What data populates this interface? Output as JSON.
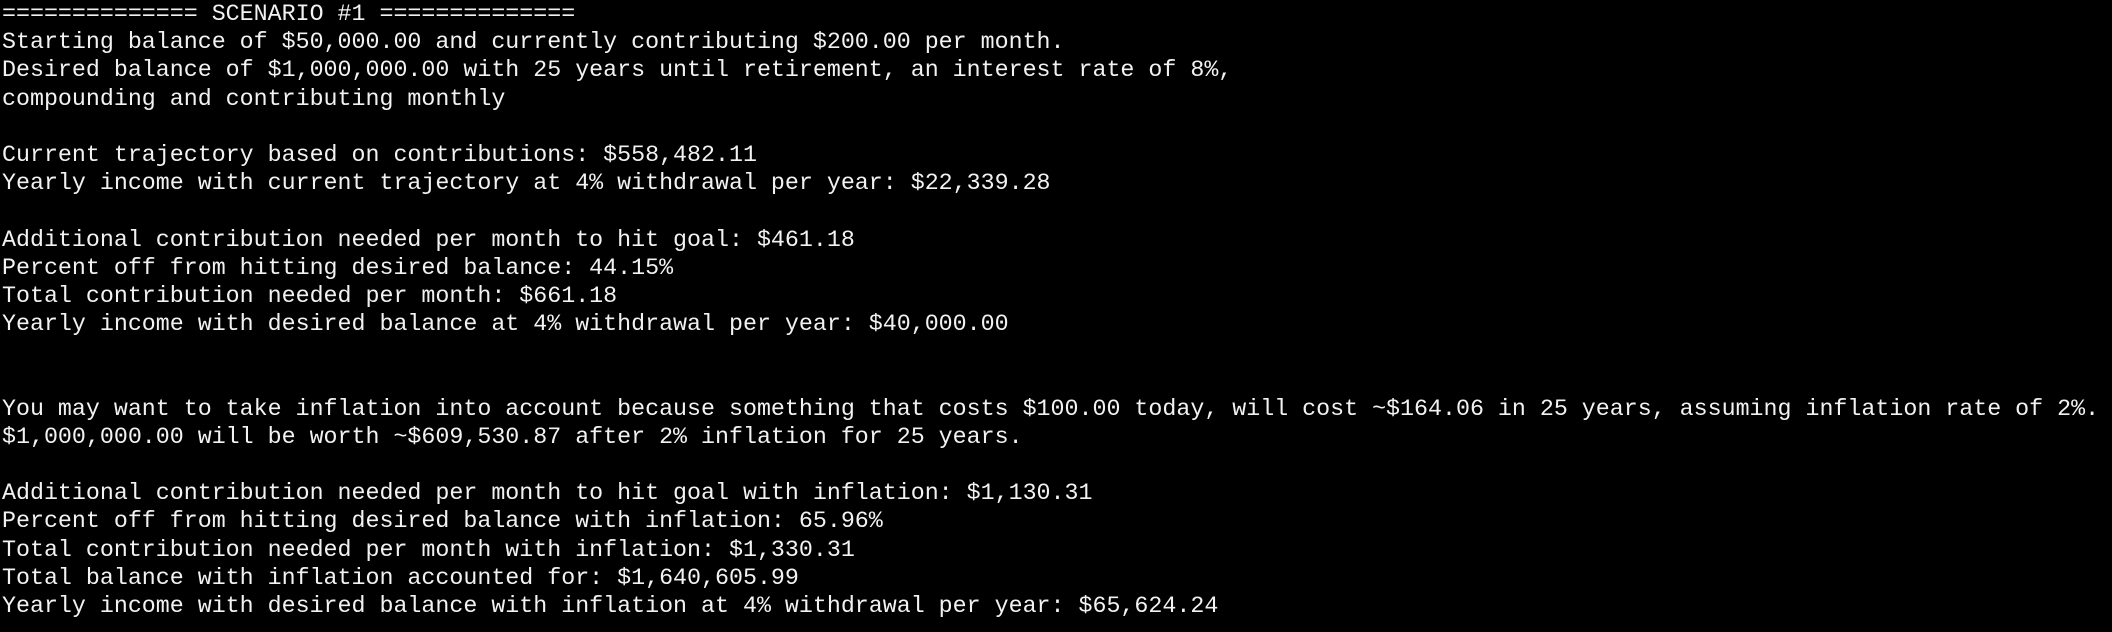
{
  "scenario": {
    "header": "============== SCENARIO #1 ==============",
    "intro": [
      "Starting balance of $50,000.00 and currently contributing $200.00 per month.",
      "Desired balance of $1,000,000.00 with 25 years until retirement, an interest rate of 8%,",
      "compounding and contributing monthly"
    ],
    "trajectory": [
      "Current trajectory based on contributions: $558,482.11",
      "Yearly income with current trajectory at 4% withdrawal per year: $22,339.28"
    ],
    "goal": [
      "Additional contribution needed per month to hit goal: $461.18",
      "Percent off from hitting desired balance: 44.15%",
      "Total contribution needed per month: $661.18",
      "Yearly income with desired balance at 4% withdrawal per year: $40,000.00"
    ],
    "inflation_note": [
      "You may want to take inflation into account because something that costs $100.00 today, will cost ~$164.06 in 25 years, assuming inflation rate of 2%.",
      "$1,000,000.00 will be worth ~$609,530.87 after 2% inflation for 25 years."
    ],
    "inflation_goal": [
      "Additional contribution needed per month to hit goal with inflation: $1,130.31",
      "Percent off from hitting desired balance with inflation: 65.96%",
      "Total contribution needed per month with inflation: $1,330.31",
      "Total balance with inflation accounted for: $1,640,605.99",
      "Yearly income with desired balance with inflation at 4% withdrawal per year: $65,624.24"
    ]
  }
}
